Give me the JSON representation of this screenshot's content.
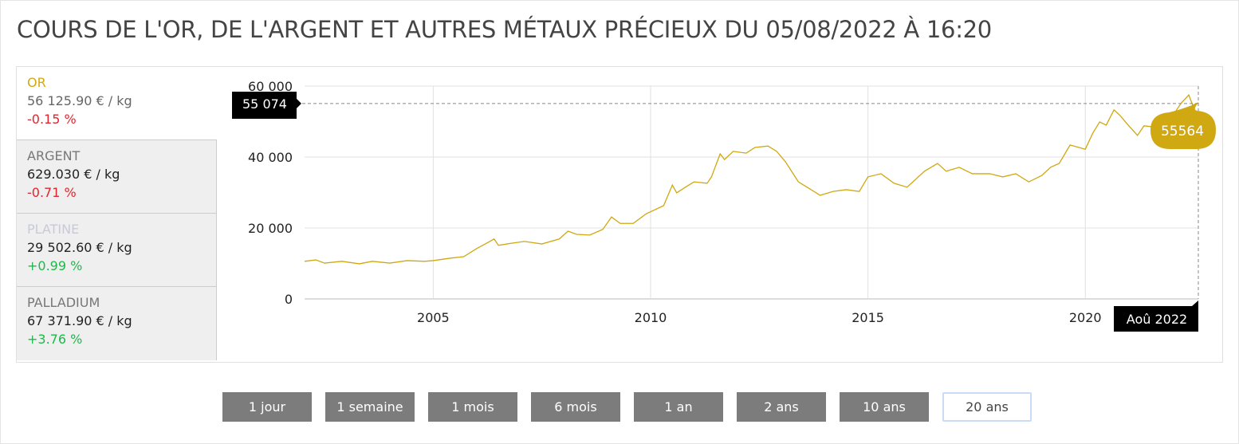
{
  "title": "COURS DE L'OR, DE L'ARGENT ET AUTRES MÉTAUX PRÉCIEUX DU 05/08/2022 À 16:20",
  "metals": [
    {
      "name": "OR",
      "price": "56 125.90 € / kg",
      "change": "-0.15 %",
      "name_color": "#d4a812",
      "trend": "neg",
      "active": true
    },
    {
      "name": "ARGENT",
      "price": "629.030 € / kg",
      "change": "-0.71 %",
      "name_color": "#777777",
      "trend": "neg"
    },
    {
      "name": "PLATINE",
      "price": "29 502.60 € / kg",
      "change": "+0.99 %",
      "name_color": "#c8cad8",
      "trend": "pos"
    },
    {
      "name": "PALLADIUM",
      "price": "67 371.90 € / kg",
      "change": "+3.76 %",
      "name_color": "#777777",
      "trend": "pos"
    }
  ],
  "periods": [
    "1 jour",
    "1 semaine",
    "1 mois",
    "6 mois",
    "1 an",
    "2 ans",
    "10 ans",
    "20 ans"
  ],
  "selected_period": "20 ans",
  "chart_data": {
    "type": "line",
    "line_color": "#cfa812",
    "ylim": [
      0,
      60000
    ],
    "xlim": [
      2002.04,
      2022.6
    ],
    "yticks": [
      "0",
      "20 000",
      "40 000",
      "60 000"
    ],
    "ytick_values": [
      0,
      20000,
      40000,
      60000
    ],
    "xticks": [
      "2005",
      "2010",
      "2015",
      "2020"
    ],
    "xtick_values": [
      2005,
      2010,
      2015,
      2020
    ],
    "grid": true,
    "crosshair": {
      "y_label": "55 074",
      "y_value": 55074,
      "x_label": "Aoû 2022",
      "x_value": 2022.6
    },
    "tooltip": "55564",
    "x": [
      2002.04,
      2002.3,
      2002.5,
      2002.9,
      2003.3,
      2003.6,
      2004.0,
      2004.4,
      2004.8,
      2005.0,
      2005.4,
      2005.7,
      2006.0,
      2006.3,
      2006.4,
      2006.5,
      2006.8,
      2007.1,
      2007.5,
      2007.9,
      2008.1,
      2008.3,
      2008.6,
      2008.9,
      2009.1,
      2009.3,
      2009.6,
      2009.9,
      2010.3,
      2010.5,
      2010.6,
      2010.8,
      2011.0,
      2011.3,
      2011.4,
      2011.6,
      2011.7,
      2011.9,
      2012.2,
      2012.4,
      2012.7,
      2012.9,
      2013.1,
      2013.4,
      2013.6,
      2013.9,
      2014.2,
      2014.5,
      2014.8,
      2015.0,
      2015.3,
      2015.6,
      2015.9,
      2016.3,
      2016.6,
      2016.8,
      2017.1,
      2017.4,
      2017.8,
      2018.1,
      2018.4,
      2018.7,
      2019.0,
      2019.2,
      2019.4,
      2019.65,
      2020.0,
      2020.17,
      2020.33,
      2020.48,
      2020.66,
      2020.8,
      2021.0,
      2021.2,
      2021.35,
      2021.7,
      2021.95,
      2022.2,
      2022.38,
      2022.47,
      2022.6
    ],
    "y": [
      10600,
      11000,
      10100,
      10600,
      9900,
      10600,
      10100,
      10800,
      10600,
      10800,
      11500,
      11900,
      14200,
      16200,
      16900,
      15100,
      15700,
      16200,
      15500,
      16900,
      19100,
      18200,
      18000,
      19600,
      23100,
      21300,
      21300,
      24000,
      26300,
      32100,
      29900,
      31500,
      33000,
      32600,
      34400,
      40900,
      39300,
      41600,
      41100,
      42700,
      43100,
      41600,
      38700,
      33000,
      31500,
      29200,
      30300,
      30800,
      30300,
      34400,
      35300,
      32600,
      31500,
      36000,
      38200,
      36000,
      37100,
      35300,
      35300,
      34400,
      35300,
      33000,
      34800,
      37100,
      38200,
      43400,
      42200,
      46700,
      49900,
      49000,
      53300,
      51700,
      48800,
      46100,
      48800,
      48300,
      50600,
      55100,
      57500,
      54600,
      55300
    ]
  }
}
